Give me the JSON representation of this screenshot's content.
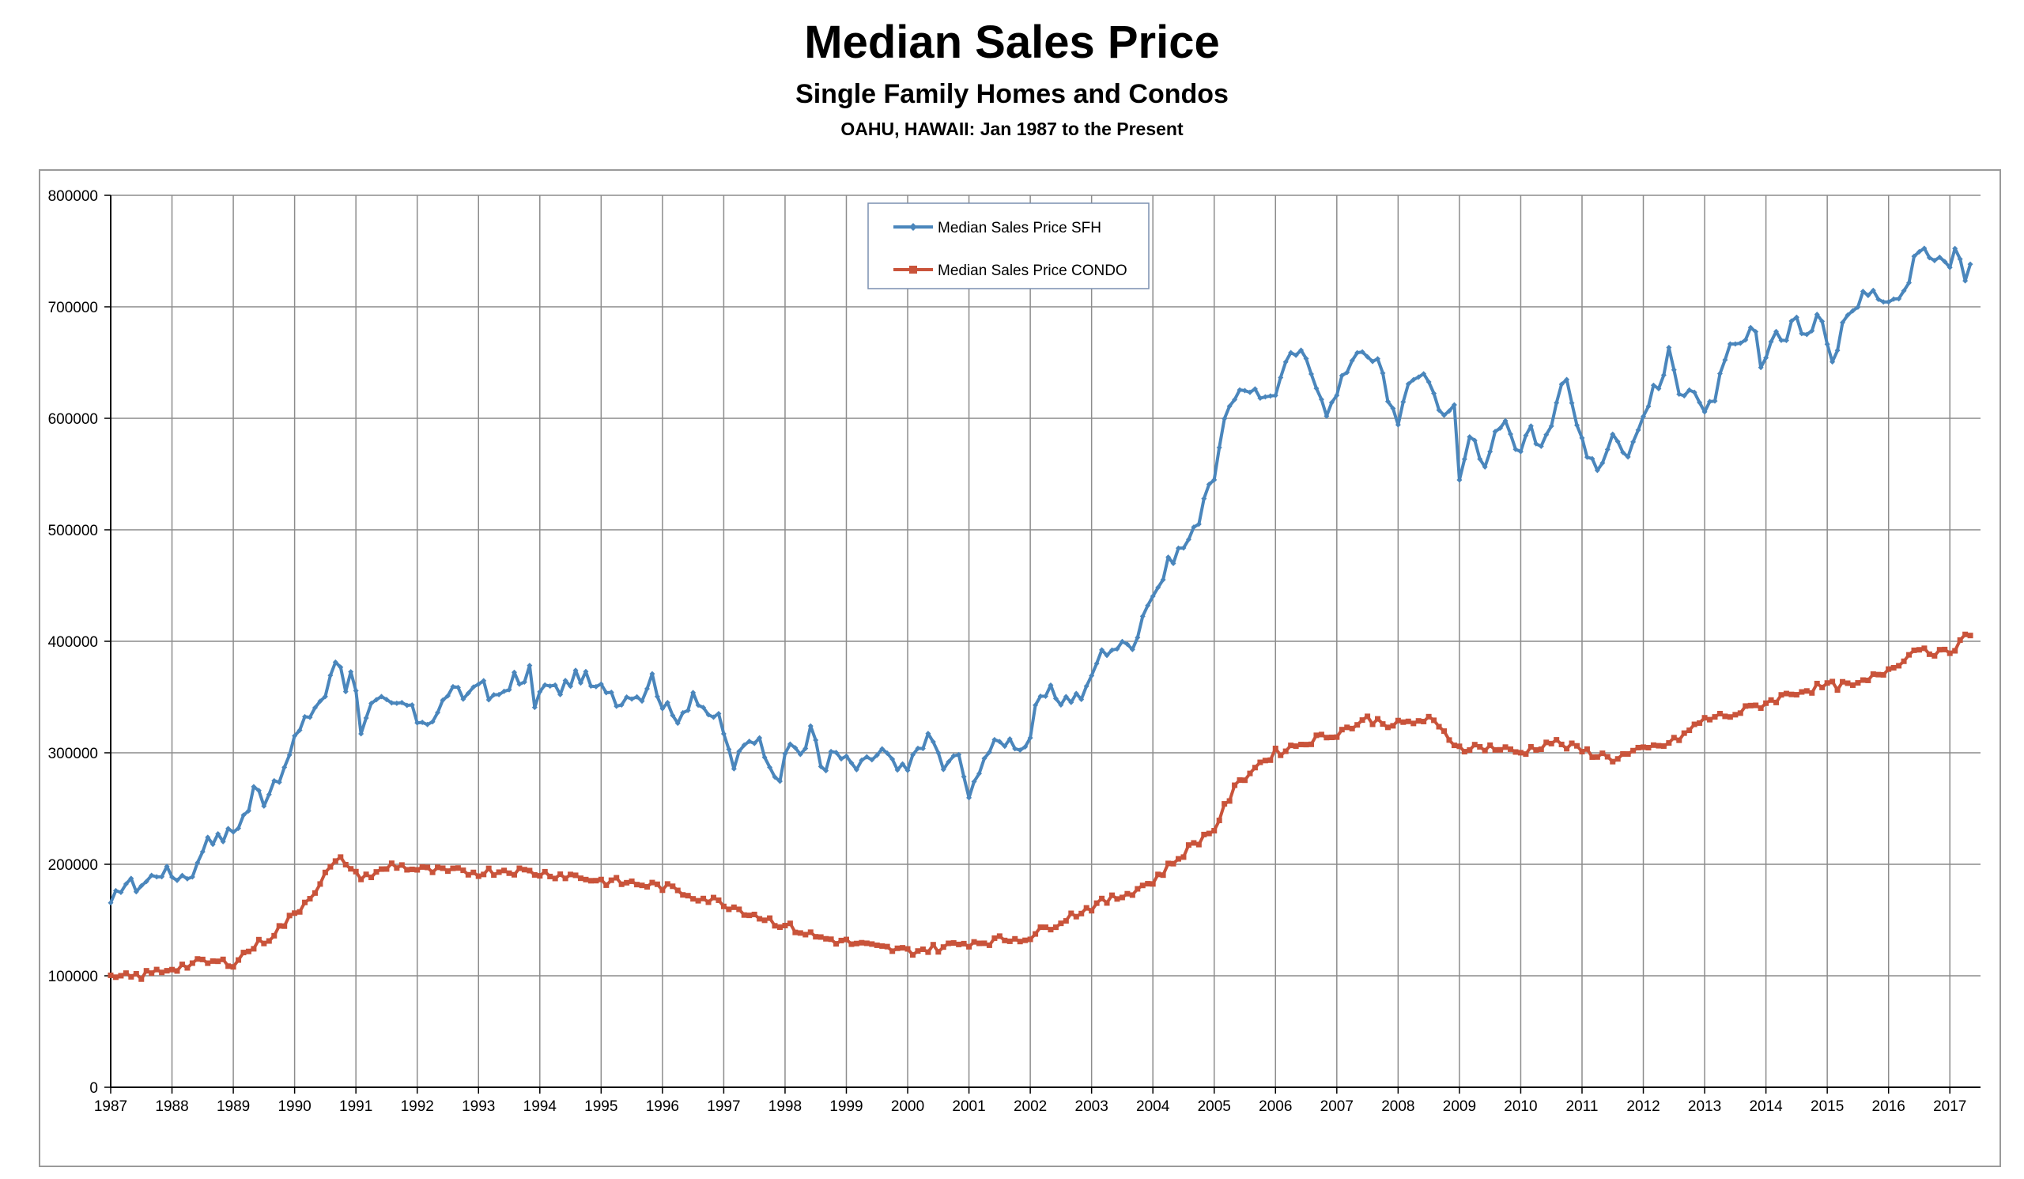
{
  "chart_data": {
    "type": "line",
    "title": "Median Sales Price",
    "subtitle": "Single Family Homes and Condos",
    "subtitle2": "OAHU, HAWAII: Jan 1987 to the Present",
    "xlabel": "",
    "ylabel": "",
    "x_range": [
      1987,
      2017.5
    ],
    "ylim": [
      0,
      800000
    ],
    "y_ticks": [
      "0",
      "100000",
      "200000",
      "300000",
      "400000",
      "500000",
      "600000",
      "700000",
      "800000"
    ],
    "x_ticks": [
      "1987",
      "1988",
      "1989",
      "1990",
      "1991",
      "1992",
      "1993",
      "1994",
      "1995",
      "1996",
      "1997",
      "1998",
      "1999",
      "2000",
      "2001",
      "2002",
      "2003",
      "2004",
      "2005",
      "2006",
      "2007",
      "2008",
      "2009",
      "2010",
      "2011",
      "2012",
      "2013",
      "2014",
      "2015",
      "2016",
      "2017"
    ],
    "grid": true,
    "legend_position": "top-center",
    "colors": {
      "sfh": "#4A86BC",
      "condo": "#C9533A",
      "grid": "#8c8c8c",
      "frame": "#9a9a9a"
    },
    "series": [
      {
        "name": "Median Sales Price SFH",
        "marker": "diamond",
        "anchors": [
          [
            1987.0,
            160000
          ],
          [
            1987.2,
            185000
          ],
          [
            1987.4,
            180000
          ],
          [
            1987.6,
            185000
          ],
          [
            1987.8,
            195000
          ],
          [
            1988.0,
            190000
          ],
          [
            1988.25,
            190000
          ],
          [
            1988.45,
            200000
          ],
          [
            1988.55,
            228000
          ],
          [
            1988.75,
            222000
          ],
          [
            1989.0,
            230000
          ],
          [
            1989.25,
            250000
          ],
          [
            1989.35,
            270000
          ],
          [
            1989.5,
            258000
          ],
          [
            1989.7,
            280000
          ],
          [
            1989.85,
            280000
          ],
          [
            1989.95,
            310000
          ],
          [
            1990.1,
            320000
          ],
          [
            1990.3,
            340000
          ],
          [
            1990.5,
            352000
          ],
          [
            1990.6,
            368000
          ],
          [
            1990.7,
            390000
          ],
          [
            1990.85,
            355000
          ],
          [
            1990.95,
            388000
          ],
          [
            1991.05,
            318000
          ],
          [
            1991.2,
            340000
          ],
          [
            1991.4,
            345000
          ],
          [
            1991.6,
            340000
          ],
          [
            1991.8,
            345000
          ],
          [
            1992.0,
            330000
          ],
          [
            1992.3,
            330000
          ],
          [
            1992.5,
            355000
          ],
          [
            1992.8,
            350000
          ],
          [
            1993.0,
            368000
          ],
          [
            1993.2,
            345000
          ],
          [
            1993.4,
            355000
          ],
          [
            1993.6,
            370000
          ],
          [
            1993.7,
            350000
          ],
          [
            1993.8,
            385000
          ],
          [
            1993.9,
            345000
          ],
          [
            1994.1,
            360000
          ],
          [
            1994.3,
            355000
          ],
          [
            1994.5,
            365000
          ],
          [
            1994.7,
            370000
          ],
          [
            1994.9,
            355000
          ],
          [
            1995.1,
            360000
          ],
          [
            1995.3,
            345000
          ],
          [
            1995.5,
            355000
          ],
          [
            1995.7,
            350000
          ],
          [
            1995.8,
            372000
          ],
          [
            1996.0,
            345000
          ],
          [
            1996.2,
            330000
          ],
          [
            1996.4,
            342000
          ],
          [
            1996.5,
            355000
          ],
          [
            1996.7,
            330000
          ],
          [
            1996.9,
            335000
          ],
          [
            1997.0,
            320000
          ],
          [
            1997.15,
            280000
          ],
          [
            1997.3,
            310000
          ],
          [
            1997.5,
            315000
          ],
          [
            1997.7,
            300000
          ],
          [
            1997.9,
            275000
          ],
          [
            1998.1,
            310000
          ],
          [
            1998.3,
            298000
          ],
          [
            1998.45,
            325000
          ],
          [
            1998.6,
            285000
          ],
          [
            1998.8,
            300000
          ],
          [
            1999.0,
            292000
          ],
          [
            1999.2,
            285000
          ],
          [
            1999.4,
            295000
          ],
          [
            1999.6,
            302000
          ],
          [
            1999.8,
            285000
          ],
          [
            2000.0,
            283000
          ],
          [
            2000.2,
            310000
          ],
          [
            2000.4,
            312000
          ],
          [
            2000.6,
            285000
          ],
          [
            2000.85,
            300000
          ],
          [
            2001.0,
            255000
          ],
          [
            2001.2,
            295000
          ],
          [
            2001.4,
            305000
          ],
          [
            2001.6,
            312000
          ],
          [
            2001.8,
            308000
          ],
          [
            2001.95,
            305000
          ],
          [
            2002.1,
            340000
          ],
          [
            2002.3,
            355000
          ],
          [
            2002.5,
            348000
          ],
          [
            2002.7,
            350000
          ],
          [
            2002.9,
            352000
          ],
          [
            2003.1,
            385000
          ],
          [
            2003.3,
            395000
          ],
          [
            2003.5,
            395000
          ],
          [
            2003.7,
            400000
          ],
          [
            2003.9,
            435000
          ],
          [
            2004.1,
            450000
          ],
          [
            2004.3,
            475000
          ],
          [
            2004.5,
            485000
          ],
          [
            2004.7,
            500000
          ],
          [
            2004.9,
            545000
          ],
          [
            2005.05,
            548000
          ],
          [
            2005.15,
            605000
          ],
          [
            2005.3,
            610000
          ],
          [
            2005.5,
            625000
          ],
          [
            2005.7,
            630000
          ],
          [
            2005.8,
            615000
          ],
          [
            2006.0,
            625000
          ],
          [
            2006.2,
            650000
          ],
          [
            2006.35,
            660000
          ],
          [
            2006.5,
            650000
          ],
          [
            2006.7,
            630000
          ],
          [
            2006.85,
            605000
          ],
          [
            2007.0,
            620000
          ],
          [
            2007.2,
            650000
          ],
          [
            2007.4,
            668000
          ],
          [
            2007.5,
            650000
          ],
          [
            2007.7,
            650000
          ],
          [
            2007.85,
            615000
          ],
          [
            2008.0,
            600000
          ],
          [
            2008.2,
            630000
          ],
          [
            2008.4,
            645000
          ],
          [
            2008.6,
            620000
          ],
          [
            2008.8,
            600000
          ],
          [
            2008.95,
            612000
          ],
          [
            2009.0,
            545000
          ],
          [
            2009.2,
            590000
          ],
          [
            2009.4,
            560000
          ],
          [
            2009.6,
            585000
          ],
          [
            2009.8,
            595000
          ],
          [
            2009.95,
            560000
          ],
          [
            2010.1,
            595000
          ],
          [
            2010.3,
            575000
          ],
          [
            2010.5,
            600000
          ],
          [
            2010.7,
            640000
          ],
          [
            2010.9,
            595000
          ],
          [
            2011.1,
            570000
          ],
          [
            2011.3,
            555000
          ],
          [
            2011.5,
            590000
          ],
          [
            2011.7,
            565000
          ],
          [
            2011.9,
            585000
          ],
          [
            2012.1,
            620000
          ],
          [
            2012.3,
            630000
          ],
          [
            2012.4,
            660000
          ],
          [
            2012.6,
            625000
          ],
          [
            2012.8,
            630000
          ],
          [
            2013.0,
            600000
          ],
          [
            2013.2,
            625000
          ],
          [
            2013.4,
            660000
          ],
          [
            2013.6,
            665000
          ],
          [
            2013.8,
            680000
          ],
          [
            2013.95,
            640000
          ],
          [
            2014.1,
            680000
          ],
          [
            2014.3,
            670000
          ],
          [
            2014.5,
            690000
          ],
          [
            2014.7,
            670000
          ],
          [
            2014.9,
            695000
          ],
          [
            2015.1,
            650000
          ],
          [
            2015.25,
            690000
          ],
          [
            2015.5,
            700000
          ],
          [
            2015.7,
            720000
          ],
          [
            2015.9,
            710000
          ],
          [
            2016.1,
            710000
          ],
          [
            2016.3,
            720000
          ],
          [
            2016.45,
            755000
          ],
          [
            2016.6,
            748000
          ],
          [
            2016.8,
            740000
          ],
          [
            2017.0,
            738000
          ],
          [
            2017.1,
            752000
          ],
          [
            2017.2,
            740000
          ],
          [
            2017.3,
            715000
          ],
          [
            2017.35,
            745000
          ]
        ]
      },
      {
        "name": "Median Sales Price CONDO",
        "marker": "square",
        "anchors": [
          [
            1987.0,
            97000
          ],
          [
            1987.5,
            100000
          ],
          [
            1988.0,
            107000
          ],
          [
            1988.5,
            112000
          ],
          [
            1989.0,
            112000
          ],
          [
            1989.3,
            125000
          ],
          [
            1989.6,
            135000
          ],
          [
            1990.0,
            155000
          ],
          [
            1990.3,
            175000
          ],
          [
            1990.6,
            198000
          ],
          [
            1990.8,
            205000
          ],
          [
            1991.0,
            190000
          ],
          [
            1991.3,
            190000
          ],
          [
            1991.6,
            200000
          ],
          [
            1992.0,
            195000
          ],
          [
            1992.5,
            193000
          ],
          [
            1993.0,
            193000
          ],
          [
            1993.5,
            195000
          ],
          [
            1994.0,
            192000
          ],
          [
            1994.5,
            190000
          ],
          [
            1995.0,
            185000
          ],
          [
            1995.5,
            183000
          ],
          [
            1996.0,
            180000
          ],
          [
            1996.5,
            172000
          ],
          [
            1997.0,
            165000
          ],
          [
            1997.5,
            155000
          ],
          [
            1998.0,
            145000
          ],
          [
            1998.5,
            135000
          ],
          [
            1999.0,
            130000
          ],
          [
            1999.5,
            125000
          ],
          [
            2000.0,
            122000
          ],
          [
            2000.5,
            125000
          ],
          [
            2001.0,
            130000
          ],
          [
            2001.5,
            132000
          ],
          [
            2002.0,
            135000
          ],
          [
            2002.5,
            150000
          ],
          [
            2003.0,
            162000
          ],
          [
            2003.5,
            172000
          ],
          [
            2004.0,
            185000
          ],
          [
            2004.3,
            200000
          ],
          [
            2004.6,
            215000
          ],
          [
            2005.0,
            232000
          ],
          [
            2005.3,
            265000
          ],
          [
            2005.6,
            285000
          ],
          [
            2006.0,
            300000
          ],
          [
            2006.5,
            310000
          ],
          [
            2007.0,
            318000
          ],
          [
            2007.5,
            330000
          ],
          [
            2008.0,
            325000
          ],
          [
            2008.5,
            330000
          ],
          [
            2009.0,
            305000
          ],
          [
            2009.5,
            305000
          ],
          [
            2010.0,
            300000
          ],
          [
            2010.5,
            310000
          ],
          [
            2011.0,
            302000
          ],
          [
            2011.5,
            295000
          ],
          [
            2012.0,
            302000
          ],
          [
            2012.5,
            310000
          ],
          [
            2013.0,
            330000
          ],
          [
            2013.5,
            335000
          ],
          [
            2014.0,
            345000
          ],
          [
            2014.5,
            355000
          ],
          [
            2015.0,
            360000
          ],
          [
            2015.5,
            360000
          ],
          [
            2016.0,
            375000
          ],
          [
            2016.5,
            395000
          ],
          [
            2016.9,
            388000
          ],
          [
            2017.2,
            400000
          ],
          [
            2017.35,
            408000
          ]
        ]
      }
    ]
  }
}
